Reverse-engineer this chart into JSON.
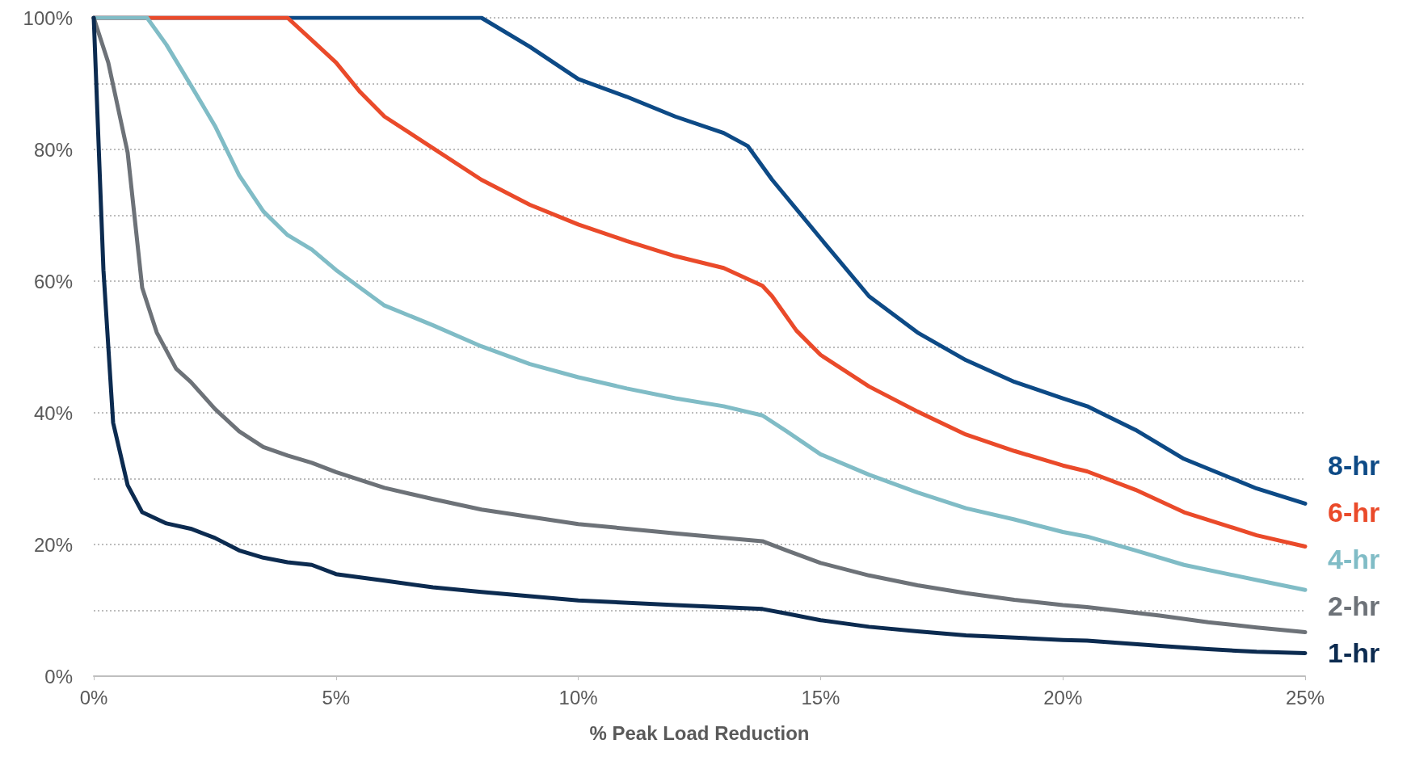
{
  "chart_data": {
    "type": "line",
    "xlabel": "% Peak Load Reduction",
    "xlim": [
      0,
      25
    ],
    "ylim": [
      0,
      100
    ],
    "xticks": [
      {
        "value": 0,
        "label": "0%"
      },
      {
        "value": 5,
        "label": "5%"
      },
      {
        "value": 10,
        "label": "10%"
      },
      {
        "value": 15,
        "label": "15%"
      },
      {
        "value": 20,
        "label": "20%"
      },
      {
        "value": 25,
        "label": "25%"
      }
    ],
    "yticks": [
      {
        "value": 0,
        "label": "0%"
      },
      {
        "value": 10,
        "label": null
      },
      {
        "value": 20,
        "label": "20%"
      },
      {
        "value": 30,
        "label": null
      },
      {
        "value": 40,
        "label": "40%"
      },
      {
        "value": 50,
        "label": null
      },
      {
        "value": 60,
        "label": "60%"
      },
      {
        "value": 70,
        "label": null
      },
      {
        "value": 80,
        "label": "80%"
      },
      {
        "value": 90,
        "label": null
      },
      {
        "value": 100,
        "label": "100%"
      }
    ],
    "grid": "y",
    "legend": false,
    "marker": "none",
    "line_style": "solid",
    "series": [
      {
        "name": "8-hr",
        "color": "#0d4a86",
        "x": [
          0,
          8,
          9,
          10,
          11,
          12,
          13,
          13.5,
          14,
          15,
          16,
          17,
          18,
          19,
          20,
          20.5,
          21.5,
          22.5,
          24,
          25
        ],
        "values": [
          100,
          100,
          95.6,
          90.7,
          88,
          85,
          82.5,
          80.5,
          75.4,
          66.5,
          57.7,
          52.2,
          48,
          44.7,
          42.2,
          41,
          37.4,
          33,
          28.5,
          26.2
        ]
      },
      {
        "name": "6-hr",
        "color": "#ea4a2a",
        "x": [
          0,
          4,
          4.5,
          5,
          5.5,
          6,
          7,
          8,
          9,
          10,
          11,
          12,
          13,
          13.8,
          14,
          14.5,
          15,
          16,
          17,
          18,
          19,
          20,
          20.5,
          21.5,
          22.5,
          24,
          25
        ],
        "values": [
          100,
          100,
          96.6,
          93.2,
          88.7,
          85,
          80.2,
          75.4,
          71.6,
          68.6,
          66.1,
          63.8,
          62,
          59.3,
          57.7,
          52.5,
          48.8,
          44,
          40.2,
          36.7,
          34.2,
          32,
          31.1,
          28.3,
          24.9,
          21.4,
          19.7
        ]
      },
      {
        "name": "4-hr",
        "color": "#80bcc6",
        "x": [
          0,
          1.1,
          1.5,
          2,
          2.5,
          3,
          3.5,
          4,
          4.5,
          5,
          6,
          7,
          8,
          9,
          10,
          11,
          12,
          13,
          13.8,
          14.3,
          15,
          16,
          17,
          18,
          19,
          20,
          20.5,
          21.5,
          22.5,
          24,
          25
        ],
        "values": [
          100,
          100,
          95.9,
          89.8,
          83.6,
          76.1,
          70.6,
          67,
          64.8,
          61.7,
          56.3,
          53.3,
          50.1,
          47.4,
          45.4,
          43.7,
          42.2,
          41,
          39.6,
          37.2,
          33.7,
          30.6,
          27.9,
          25.5,
          23.8,
          21.9,
          21.2,
          19.1,
          16.9,
          14.6,
          13.1
        ]
      },
      {
        "name": "2-hr",
        "color": "#6d7278",
        "x": [
          0,
          0.3,
          0.7,
          1,
          1.3,
          1.7,
          2,
          2.5,
          3,
          3.5,
          4,
          4.5,
          5,
          6,
          7,
          8,
          9,
          10,
          11,
          12,
          13,
          13.8,
          14.3,
          15,
          16,
          17,
          18,
          19,
          20,
          20.5,
          22,
          23,
          24,
          25
        ],
        "values": [
          100,
          93.2,
          79.5,
          59,
          52.2,
          46.7,
          44.7,
          40.6,
          37.2,
          34.8,
          33.5,
          32.4,
          31,
          28.6,
          26.9,
          25.3,
          24.2,
          23.1,
          22.4,
          21.7,
          21,
          20.5,
          19.1,
          17.2,
          15.3,
          13.8,
          12.6,
          11.6,
          10.8,
          10.5,
          9.2,
          8.2,
          7.4,
          6.7
        ]
      },
      {
        "name": "1-hr",
        "color": "#0c2b50",
        "x": [
          0,
          0.2,
          0.4,
          0.7,
          1,
          1.5,
          2,
          2.5,
          3,
          3.5,
          4,
          4.5,
          5,
          6,
          7,
          8,
          10,
          12,
          13.8,
          14.3,
          15,
          16,
          17,
          18,
          20,
          20.5,
          22,
          23,
          24,
          25
        ],
        "values": [
          100,
          61.7,
          38.5,
          29,
          24.9,
          23.2,
          22.4,
          21,
          19.1,
          18,
          17.3,
          16.9,
          15.5,
          14.5,
          13.5,
          12.8,
          11.5,
          10.8,
          10.2,
          9.5,
          8.5,
          7.5,
          6.8,
          6.2,
          5.5,
          5.4,
          4.6,
          4.1,
          3.7,
          3.5
        ]
      }
    ]
  }
}
